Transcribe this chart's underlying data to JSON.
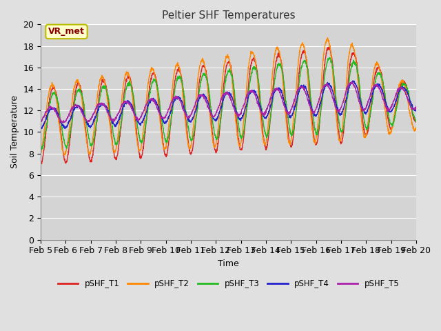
{
  "title": "Peltier SHF Temperatures",
  "xlabel": "Time",
  "ylabel": "Soil Temperature",
  "ylim": [
    0,
    20
  ],
  "xlim": [
    0,
    15
  ],
  "background_color": "#e0e0e0",
  "plot_bg_color": "#d4d4d4",
  "grid_color": "#ffffff",
  "annotation_text": "VR_met",
  "annotation_bg": "#ffffcc",
  "annotation_border": "#bbbb00",
  "annotation_text_color": "#880000",
  "series_colors": [
    "#dd2222",
    "#ff8800",
    "#22bb22",
    "#2222cc",
    "#aa22aa"
  ],
  "series_labels": [
    "pSHF_T1",
    "pSHF_T2",
    "pSHF_T3",
    "pSHF_T4",
    "pSHF_T5"
  ],
  "xtick_labels": [
    "Feb 5",
    "Feb 6",
    "Feb 7",
    "Feb 8",
    "Feb 9",
    "Feb 10",
    "Feb 11",
    "Feb 12",
    "Feb 13",
    "Feb 14",
    "Feb 15",
    "Feb 16",
    "Feb 17",
    "Feb 18",
    "Feb 19",
    "Feb 20"
  ],
  "xtick_positions": [
    0,
    1,
    2,
    3,
    4,
    5,
    6,
    7,
    8,
    9,
    10,
    11,
    12,
    13,
    14,
    15
  ],
  "ytick_values": [
    0,
    2,
    4,
    6,
    8,
    10,
    12,
    14,
    16,
    18,
    20
  ]
}
